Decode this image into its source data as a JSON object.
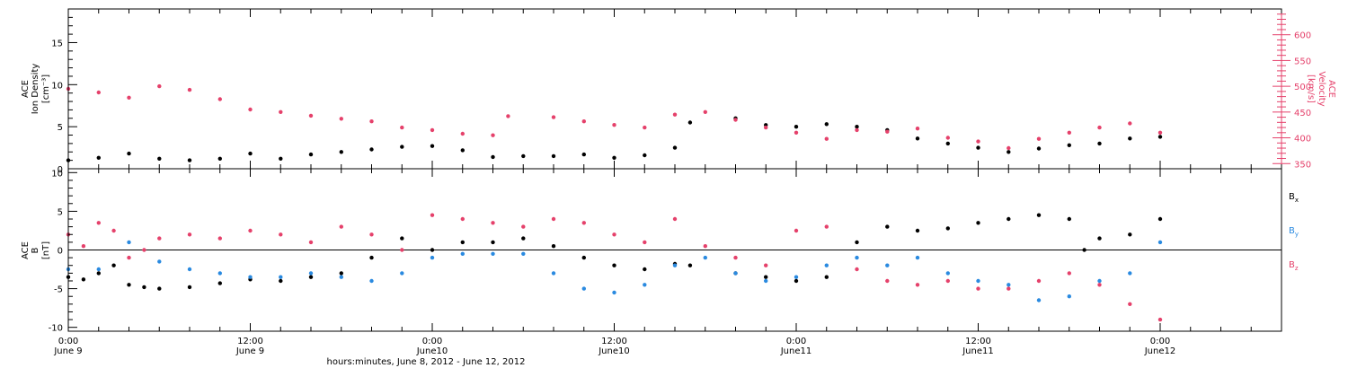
{
  "chart_data": [
    {
      "type": "scatter",
      "panel": "top",
      "ylabel_lines": [
        "ACE",
        "Ion Density",
        "[cm⁻³]"
      ],
      "ylim": [
        0,
        19
      ],
      "yticks": [
        0,
        5,
        10,
        15
      ],
      "right_axis": {
        "label_lines": [
          "ACE",
          "Velocity",
          "[km/s]"
        ],
        "ylim": [
          340,
          650
        ],
        "yticks": [
          350,
          400,
          450,
          500,
          550,
          600
        ],
        "color": "#e5416b"
      },
      "series": [
        {
          "axis": "left",
          "color": "#000000",
          "x": [
            0,
            2,
            4,
            6,
            8,
            10,
            12,
            14,
            16,
            18,
            20,
            22,
            24,
            26,
            28,
            30,
            32,
            34,
            36,
            38,
            40,
            41,
            44,
            46,
            48,
            50,
            52,
            54,
            56,
            58,
            60,
            62,
            64,
            66,
            68,
            70,
            72
          ],
          "y": [
            1.0,
            1.3,
            1.8,
            1.2,
            1.0,
            1.2,
            1.8,
            1.2,
            1.7,
            2.0,
            2.3,
            2.6,
            2.7,
            2.2,
            1.4,
            1.5,
            1.5,
            1.7,
            1.3,
            1.6,
            2.5,
            5.5,
            6.0,
            5.2,
            5.0,
            5.3,
            5.0,
            4.6,
            3.6,
            3.0,
            2.5,
            2.0,
            2.4,
            2.8,
            3.0,
            3.6,
            3.8
          ]
        },
        {
          "axis": "right",
          "color": "#e5416b",
          "x": [
            0,
            2,
            4,
            6,
            8,
            10,
            12,
            14,
            16,
            18,
            20,
            22,
            24,
            26,
            28,
            29,
            32,
            34,
            36,
            38,
            40,
            42,
            44,
            46,
            48,
            50,
            52,
            54,
            56,
            58,
            60,
            62,
            64,
            66,
            68,
            70,
            72
          ],
          "y": [
            495,
            488,
            478,
            500,
            493,
            475,
            455,
            450,
            443,
            437,
            432,
            420,
            415,
            408,
            405,
            442,
            440,
            432,
            425,
            420,
            445,
            450,
            435,
            420,
            410,
            398,
            415,
            412,
            418,
            400,
            393,
            380,
            398,
            410,
            420,
            428,
            410
          ]
        }
      ]
    },
    {
      "type": "scatter",
      "panel": "bottom",
      "ylabel_lines": [
        "ACE",
        "B",
        "[nT]"
      ],
      "ylim": [
        -10.5,
        10.5
      ],
      "yticks": [
        -10,
        -5,
        0,
        5,
        10
      ],
      "zero_line": true,
      "legend": [
        "Bx",
        "By",
        "Bz"
      ],
      "series": [
        {
          "name": "Bx",
          "color": "#000000",
          "x": [
            0,
            1,
            2,
            3,
            4,
            5,
            6,
            8,
            10,
            12,
            14,
            16,
            18,
            20,
            22,
            24,
            26,
            28,
            30,
            32,
            34,
            36,
            38,
            40,
            41,
            44,
            46,
            48,
            50,
            52,
            54,
            56,
            58,
            60,
            62,
            64,
            66,
            67,
            68,
            70,
            72
          ],
          "y": [
            -3.5,
            -3.8,
            -3.0,
            -2.0,
            -4.5,
            -4.8,
            -5.0,
            -4.8,
            -4.3,
            -3.8,
            -4.0,
            -3.5,
            -3.0,
            -1.0,
            1.5,
            0.0,
            1.0,
            1.0,
            1.5,
            0.5,
            -1.0,
            -2.0,
            -2.5,
            -1.8,
            -2.0,
            -3.0,
            -3.5,
            -4.0,
            -3.5,
            1.0,
            3.0,
            2.5,
            2.8,
            3.5,
            4.0,
            4.5,
            4.0,
            0.0,
            1.5,
            2.0,
            4.0
          ]
        },
        {
          "name": "By",
          "color": "#2a8ae0",
          "x": [
            0,
            2,
            4,
            6,
            8,
            10,
            12,
            14,
            16,
            18,
            20,
            22,
            24,
            26,
            28,
            30,
            32,
            34,
            36,
            38,
            40,
            42,
            44,
            46,
            48,
            50,
            52,
            54,
            56,
            58,
            60,
            62,
            64,
            66,
            68,
            70,
            72
          ],
          "y": [
            -2.5,
            -2.5,
            1.0,
            -1.5,
            -2.5,
            -3.0,
            -3.5,
            -3.5,
            -3.0,
            -3.5,
            -4.0,
            -3.0,
            -1.0,
            -0.5,
            -0.5,
            -0.5,
            -3.0,
            -5.0,
            -5.5,
            -4.5,
            -2.0,
            -1.0,
            -3.0,
            -4.0,
            -3.5,
            -2.0,
            -1.0,
            -2.0,
            -1.0,
            -3.0,
            -4.0,
            -4.5,
            -6.5,
            -6.0,
            -4.0,
            -3.0,
            1.0
          ]
        },
        {
          "name": "Bz",
          "color": "#e5416b",
          "x": [
            0,
            1,
            2,
            3,
            4,
            5,
            6,
            8,
            10,
            12,
            14,
            16,
            18,
            20,
            22,
            24,
            26,
            28,
            30,
            32,
            34,
            36,
            38,
            40,
            42,
            44,
            46,
            48,
            50,
            52,
            54,
            56,
            58,
            60,
            62,
            64,
            66,
            68,
            70,
            72
          ],
          "y": [
            2.0,
            0.5,
            3.5,
            2.5,
            -1.0,
            0.0,
            1.5,
            2.0,
            1.5,
            2.5,
            2.0,
            1.0,
            3.0,
            2.0,
            0.0,
            4.5,
            4.0,
            3.5,
            3.0,
            4.0,
            3.5,
            2.0,
            1.0,
            4.0,
            0.5,
            -1.0,
            -2.0,
            2.5,
            3.0,
            -2.5,
            -4.0,
            -4.5,
            -4.0,
            -5.0,
            -5.0,
            -4.0,
            -3.0,
            -4.5,
            -7.0,
            -9.0
          ]
        }
      ]
    }
  ],
  "x_axis": {
    "range_hours": [
      0,
      80
    ],
    "ticks": [
      {
        "h": 0,
        "top": "0:00",
        "bottom": "June 9"
      },
      {
        "h": 12,
        "top": "12:00",
        "bottom": "June 9"
      },
      {
        "h": 24,
        "top": "0:00",
        "bottom": "June10"
      },
      {
        "h": 36,
        "top": "12:00",
        "bottom": "June10"
      },
      {
        "h": 48,
        "top": "0:00",
        "bottom": "June11"
      },
      {
        "h": 60,
        "top": "12:00",
        "bottom": "June11"
      },
      {
        "h": 72,
        "top": "0:00",
        "bottom": "June12"
      }
    ],
    "caption": "hours:minutes, June  8, 2012 - June 12, 2012"
  }
}
